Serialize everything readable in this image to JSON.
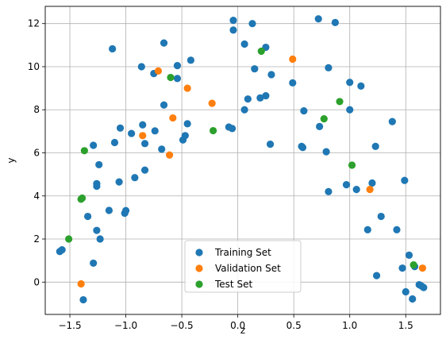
{
  "chart_data": {
    "type": "scatter",
    "title": "",
    "xlabel": "z",
    "ylabel": "y",
    "xlim": [
      -1.72,
      1.81
    ],
    "ylim": [
      -1.5,
      12.8
    ],
    "xticks": [
      -1.5,
      -1.0,
      -0.5,
      0.0,
      0.5,
      1.0,
      1.5
    ],
    "xtick_labels": [
      "−1.5",
      "−1.0",
      "−0.5",
      "0.0",
      "0.5",
      "1.0",
      "1.5"
    ],
    "yticks": [
      0,
      2,
      4,
      6,
      8,
      10,
      12
    ],
    "ytick_labels": [
      "0",
      "2",
      "4",
      "6",
      "8",
      "10",
      "12"
    ],
    "grid": true,
    "legend_position": "bottom-center",
    "series": [
      {
        "name": "Training Set",
        "color": "#1f77b4",
        "points": [
          [
            -1.59,
            1.42
          ],
          [
            -1.57,
            1.5
          ],
          [
            -1.38,
            -0.82
          ],
          [
            -1.34,
            3.05
          ],
          [
            -1.29,
            6.35
          ],
          [
            -1.29,
            0.88
          ],
          [
            -1.26,
            2.4
          ],
          [
            -1.26,
            4.45
          ],
          [
            -1.26,
            4.57
          ],
          [
            -1.24,
            5.45
          ],
          [
            -1.23,
            2.0
          ],
          [
            -1.15,
            3.33
          ],
          [
            -1.12,
            10.83
          ],
          [
            -1.1,
            6.48
          ],
          [
            -1.06,
            4.65
          ],
          [
            -1.05,
            7.15
          ],
          [
            -1.01,
            3.2
          ],
          [
            -1.0,
            3.32
          ],
          [
            -0.95,
            6.9
          ],
          [
            -0.92,
            4.85
          ],
          [
            -0.86,
            10.0
          ],
          [
            -0.85,
            7.3
          ],
          [
            -0.83,
            6.43
          ],
          [
            -0.83,
            5.2
          ],
          [
            -0.75,
            9.68
          ],
          [
            -0.74,
            7.02
          ],
          [
            -0.68,
            6.17
          ],
          [
            -0.66,
            11.1
          ],
          [
            -0.66,
            8.22
          ],
          [
            -0.54,
            9.45
          ],
          [
            -0.54,
            10.05
          ],
          [
            -0.49,
            6.6
          ],
          [
            -0.47,
            6.8
          ],
          [
            -0.45,
            7.35
          ],
          [
            -0.42,
            10.3
          ],
          [
            -0.08,
            7.2
          ],
          [
            -0.05,
            7.13
          ],
          [
            -0.04,
            12.15
          ],
          [
            -0.04,
            11.7
          ],
          [
            0.06,
            8.0
          ],
          [
            0.06,
            11.05
          ],
          [
            0.09,
            8.5
          ],
          [
            0.13,
            12.0
          ],
          [
            0.15,
            9.9
          ],
          [
            0.2,
            8.55
          ],
          [
            0.25,
            8.65
          ],
          [
            0.25,
            10.9
          ],
          [
            0.29,
            6.4
          ],
          [
            0.3,
            9.63
          ],
          [
            0.49,
            9.25
          ],
          [
            0.57,
            6.3
          ],
          [
            0.58,
            6.25
          ],
          [
            0.59,
            7.95
          ],
          [
            0.72,
            12.22
          ],
          [
            0.73,
            7.22
          ],
          [
            0.79,
            6.05
          ],
          [
            0.81,
            9.95
          ],
          [
            0.81,
            4.2
          ],
          [
            0.87,
            12.05
          ],
          [
            0.97,
            4.52
          ],
          [
            1.0,
            9.27
          ],
          [
            1.0,
            8.0
          ],
          [
            1.06,
            4.3
          ],
          [
            1.1,
            9.1
          ],
          [
            1.16,
            2.43
          ],
          [
            1.2,
            4.6
          ],
          [
            1.23,
            6.3
          ],
          [
            1.24,
            0.3
          ],
          [
            1.28,
            3.05
          ],
          [
            1.38,
            7.45
          ],
          [
            1.42,
            2.43
          ],
          [
            1.47,
            0.65
          ],
          [
            1.49,
            4.72
          ],
          [
            1.5,
            -0.45
          ],
          [
            1.53,
            1.25
          ],
          [
            1.56,
            -0.78
          ],
          [
            1.58,
            0.72
          ],
          [
            1.62,
            -0.12
          ],
          [
            1.64,
            -0.18
          ],
          [
            1.66,
            -0.25
          ]
        ]
      },
      {
        "name": "Validation Set",
        "color": "#ff7f0e",
        "points": [
          [
            -1.4,
            -0.08
          ],
          [
            -0.85,
            6.8
          ],
          [
            -0.71,
            9.8
          ],
          [
            -0.61,
            5.9
          ],
          [
            -0.58,
            7.62
          ],
          [
            -0.45,
            9.0
          ],
          [
            -0.23,
            8.3
          ],
          [
            0.49,
            10.35
          ],
          [
            1.18,
            4.3
          ],
          [
            1.65,
            0.65
          ]
        ]
      },
      {
        "name": "Test Set",
        "color": "#2ca02c",
        "points": [
          [
            -1.51,
            2.0
          ],
          [
            -1.4,
            3.85
          ],
          [
            -1.39,
            3.9
          ],
          [
            -1.37,
            6.1
          ],
          [
            -0.6,
            9.5
          ],
          [
            -0.22,
            7.03
          ],
          [
            0.21,
            10.72
          ],
          [
            0.77,
            7.58
          ],
          [
            0.91,
            8.38
          ],
          [
            1.02,
            5.43
          ],
          [
            1.57,
            0.8
          ]
        ]
      }
    ]
  }
}
